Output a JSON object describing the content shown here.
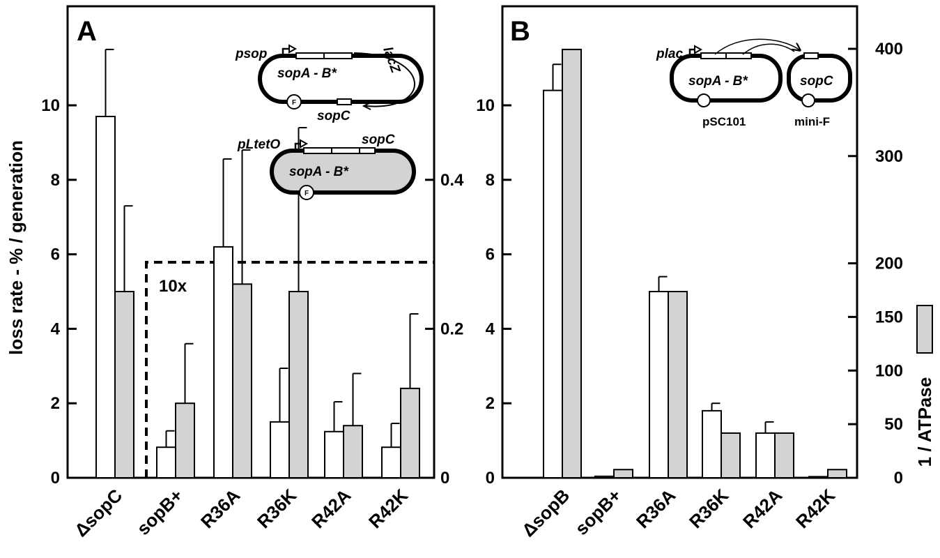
{
  "chart_data": [
    {
      "type": "bar",
      "panel_label": "A",
      "ylabel": "loss rate - % / generation",
      "ylim": [
        0,
        12.5
      ],
      "y_ticks": [
        "0",
        "2",
        "4",
        "6",
        "8",
        "10"
      ],
      "categories": [
        "ΔsopC",
        "sopB+",
        "R36A",
        "R36K",
        "R42A",
        "R42K"
      ],
      "inset": {
        "label": "10x",
        "y_ticks": [
          "0",
          "0.2",
          "0.4"
        ],
        "ylim": [
          0,
          0.575
        ],
        "categories": [
          "sopB+",
          "R36A",
          "R36K",
          "R42A",
          "R42K"
        ]
      },
      "series": [
        {
          "color": "#ffffff",
          "values": [
            9.7,
            0.041,
            0.31,
            0.075,
            0.062,
            0.041
          ],
          "errors": [
            1.8,
            0.022,
            0.118,
            0.072,
            0.04,
            0.032
          ]
        },
        {
          "color": "#d3d3d3",
          "values": [
            5.0,
            0.1,
            0.26,
            0.25,
            0.07,
            0.12
          ],
          "errors": [
            2.3,
            0.08,
            0.18,
            0.22,
            0.07,
            0.1
          ]
        }
      ],
      "diagram": {
        "plasmid1": {
          "promoter": "psop",
          "genes": "sopA - B*",
          "reporter": "lacZ",
          "site": "sopC",
          "marker": "F"
        },
        "plasmid2": {
          "promoter": "pLtetO",
          "genes": "sopA - B*",
          "site": "sopC",
          "marker": "F"
        }
      }
    },
    {
      "type": "bar",
      "panel_label": "B",
      "ylabel": "",
      "ylim": [
        0,
        12.5
      ],
      "y_ticks": [
        "0",
        "2",
        "4",
        "6",
        "8",
        "10"
      ],
      "y2label": "1 / ATPase",
      "y2lim": [
        0,
        400
      ],
      "y2_ticks": [
        "0",
        "50",
        "100",
        "150",
        "200",
        "300",
        "400"
      ],
      "categories": [
        "ΔsopB",
        "sopB+",
        "R36A",
        "R36K",
        "R42A",
        "R42K"
      ],
      "series": [
        {
          "color": "#ffffff",
          "values": [
            10.4,
            0.04,
            5.0,
            1.8,
            1.2,
            0.03
          ],
          "errors": [
            0.7,
            0,
            0.4,
            0.2,
            0.3,
            0
          ]
        },
        {
          "color": "#d3d3d3",
          "values": [
            11.5,
            0.22,
            5.0,
            1.2,
            1.2,
            0.22
          ],
          "errors": [
            0,
            0,
            0,
            0,
            0,
            0
          ]
        }
      ],
      "diagram": {
        "plasmid1": {
          "promoter": "plac",
          "genes": "sopA - B*",
          "name": "pSC101"
        },
        "plasmid2": {
          "site": "sopC",
          "name": "mini-F"
        }
      }
    }
  ]
}
